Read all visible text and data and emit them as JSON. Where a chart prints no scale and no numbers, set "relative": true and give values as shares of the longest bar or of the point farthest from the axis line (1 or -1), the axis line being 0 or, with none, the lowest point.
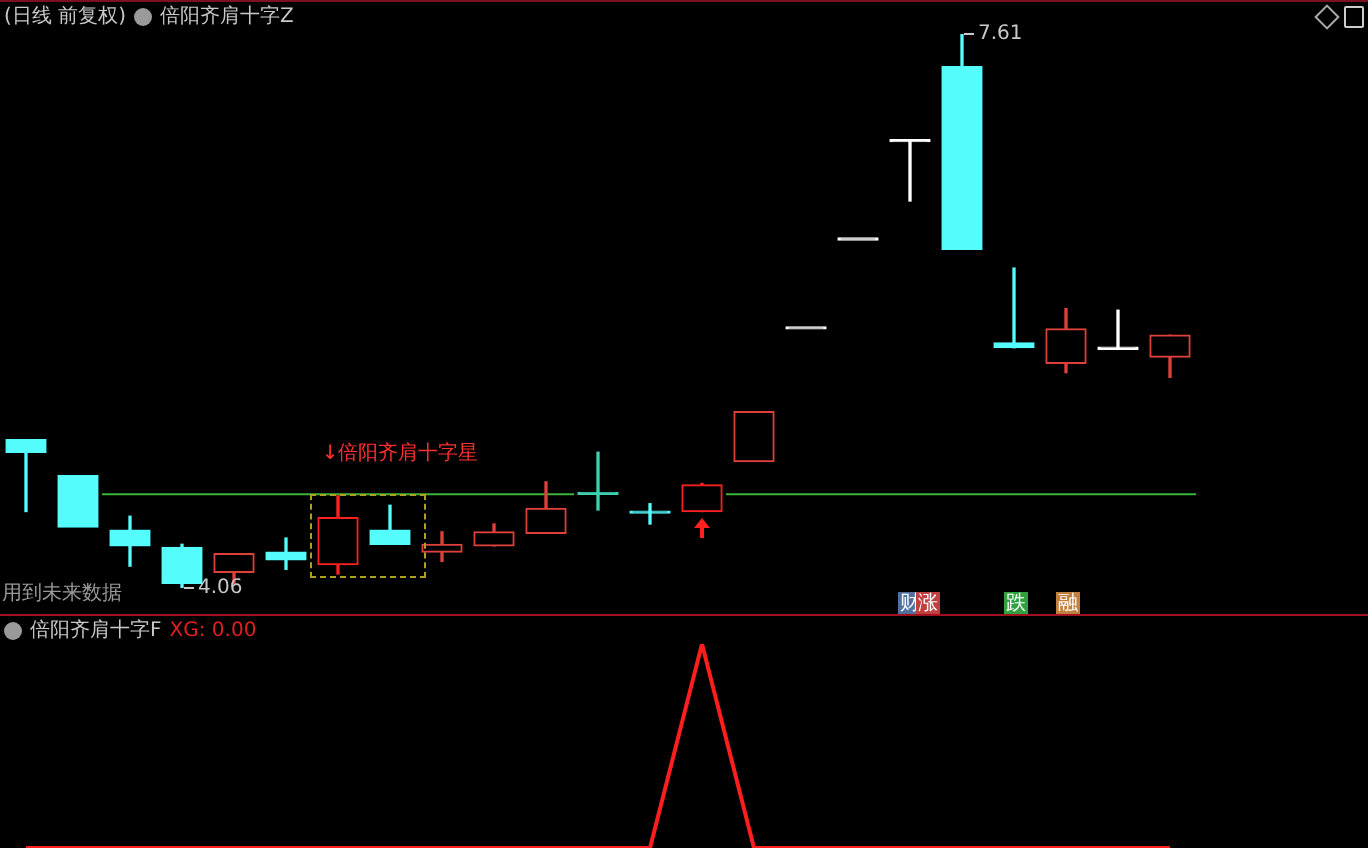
{
  "chart_data": [
    {
      "type": "candlestick",
      "title": "(日线 前复权)",
      "subtitle": "倍阳齐肩十字Z",
      "categories": [
        null,
        null,
        null,
        null,
        null,
        null,
        null,
        null,
        null,
        null,
        null,
        null,
        null,
        null,
        null,
        null,
        null,
        null,
        null,
        null,
        null,
        null,
        null
      ],
      "ohlc": [
        [
          5.01,
          5.01,
          4.55,
          4.93
        ],
        [
          4.78,
          4.78,
          4.45,
          4.45
        ],
        [
          4.43,
          4.52,
          4.2,
          4.33
        ],
        [
          4.32,
          4.34,
          4.06,
          4.09
        ],
        [
          4.16,
          4.28,
          4.09,
          4.28
        ],
        [
          4.29,
          4.38,
          4.18,
          4.24
        ],
        [
          4.21,
          4.65,
          4.15,
          4.51
        ],
        [
          4.43,
          4.59,
          4.34,
          4.34
        ],
        [
          4.29,
          4.42,
          4.23,
          4.34
        ],
        [
          4.33,
          4.47,
          4.33,
          4.42
        ],
        [
          4.41,
          4.74,
          4.41,
          4.57
        ],
        [
          4.66,
          4.93,
          4.56,
          4.66
        ],
        [
          4.55,
          4.6,
          4.47,
          4.54
        ],
        [
          4.55,
          4.73,
          4.55,
          4.72
        ],
        [
          4.87,
          5.19,
          4.87,
          5.19
        ],
        [
          5.72,
          5.72,
          5.72,
          5.72
        ],
        [
          6.29,
          6.29,
          6.29,
          6.29
        ],
        [
          6.92,
          6.92,
          6.54,
          6.92
        ],
        [
          7.4,
          7.61,
          6.23,
          6.23
        ],
        [
          5.63,
          6.11,
          5.6,
          5.6
        ],
        [
          5.5,
          5.85,
          5.44,
          5.72
        ],
        [
          5.59,
          5.84,
          5.59,
          5.59
        ],
        [
          5.54,
          5.68,
          5.41,
          5.68
        ]
      ],
      "colors": [
        "#54fcfc",
        "#54fcfc",
        "#54fcfc",
        "#54fcfc",
        "#e0403c",
        "#54fcfc",
        "#ff2020",
        "#54fcfc",
        "#e0403c",
        "#e0403c",
        "#e0403c",
        "#40d0b0",
        "#54fcfc",
        "#ff2020",
        "#e0403c",
        "#ffffff",
        "#ffffff",
        "#ffffff",
        "#54fcfc",
        "#54fcfc",
        "#e0403c",
        "#ffffff",
        "#e0403c"
      ],
      "ref_lines": [
        {
          "axis": "y",
          "value": 4.66,
          "color": "#3cb43c"
        }
      ],
      "annotations": [
        "7.61",
        "4.06",
        "↓倍阳齐肩十字星",
        "用到未来数据",
        "财",
        "涨",
        "跌",
        "融"
      ]
    },
    {
      "type": "line",
      "title": "倍阳齐肩十字F",
      "relative": true,
      "categories": [
        null,
        null,
        null,
        null,
        null,
        null,
        null,
        null,
        null,
        null,
        null,
        null,
        null,
        null,
        null,
        null,
        null,
        null,
        null,
        null,
        null,
        null,
        null
      ],
      "series": [
        {
          "color": "#ff1e1e",
          "values": [
            0,
            0,
            0,
            0,
            0,
            0,
            0,
            0,
            0,
            0,
            0,
            0,
            0,
            1,
            0,
            0,
            0,
            0,
            0,
            0,
            0,
            0,
            0
          ]
        }
      ],
      "annotations": [
        "XG: 0.00"
      ]
    }
  ]
}
